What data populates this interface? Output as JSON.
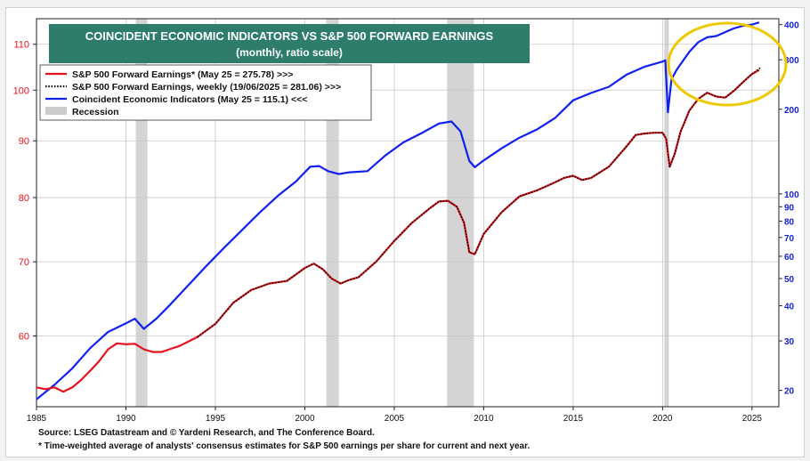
{
  "chart_data": {
    "type": "line",
    "title": "COINCIDENT ECONOMIC  INDICATORS VS S&P 500 FORWARD EARNINGS",
    "subtitle": "(monthly, ratio scale)",
    "x_ticks": [
      "1985",
      "1990",
      "1995",
      "2000",
      "2005",
      "2010",
      "2015",
      "2020",
      "2025"
    ],
    "xlim": [
      1985,
      2026.5
    ],
    "left_axis": {
      "scale": "log",
      "ylim": [
        51.8,
        116
      ],
      "ticks": [
        "60",
        "70",
        "80",
        "90",
        "100",
        "110"
      ],
      "color": "#e8101a"
    },
    "right_axis": {
      "scale": "log",
      "ylim": [
        17.5,
        420
      ],
      "ticks": [
        "20",
        "30",
        "40",
        "50",
        "60",
        "70",
        "80",
        "90",
        "100",
        "200",
        "300",
        "400"
      ],
      "color": "#1020d8"
    },
    "grid": true,
    "legend_position": "top-left",
    "recessions": [
      {
        "start": 1990.55,
        "end": 1991.2
      },
      {
        "start": 2001.2,
        "end": 2001.9
      },
      {
        "start": 2007.95,
        "end": 2009.45
      },
      {
        "start": 2020.1,
        "end": 2020.35
      }
    ],
    "series": [
      {
        "name": "Coincident Economic Indicators (May 25 = 115.1) <<<",
        "axis": "left",
        "color": "#1020f0",
        "style": "solid",
        "x": [
          1985.0,
          1986.0,
          1987.0,
          1988.0,
          1989.0,
          1990.0,
          1990.5,
          1991.0,
          1991.7,
          1992.5,
          1993.5,
          1994.5,
          1995.5,
          1996.5,
          1997.5,
          1998.5,
          1999.5,
          2000.3,
          2000.8,
          2001.3,
          2001.9,
          2002.5,
          2003.5,
          2004.5,
          2005.5,
          2006.5,
          2007.5,
          2008.2,
          2008.7,
          2009.2,
          2009.5,
          2010.0,
          2011.0,
          2012.0,
          2013.0,
          2014.0,
          2015.0,
          2016.0,
          2017.0,
          2018.0,
          2019.0,
          2020.0,
          2020.15,
          2020.3,
          2020.5,
          2020.8,
          2021.5,
          2022.0,
          2022.5,
          2023.0,
          2023.5,
          2024.0,
          2024.5,
          2025.0,
          2025.4
        ],
        "values": [
          52.6,
          54.2,
          56.1,
          58.5,
          60.5,
          61.6,
          62.2,
          60.9,
          62.2,
          64.1,
          66.7,
          69.4,
          72.1,
          74.8,
          77.6,
          80.3,
          82.7,
          85.3,
          85.4,
          84.5,
          84.0,
          84.3,
          84.5,
          87.3,
          89.7,
          91.4,
          93.3,
          93.7,
          91.8,
          86.3,
          85.2,
          86.4,
          88.6,
          90.6,
          92.2,
          94.4,
          97.9,
          99.4,
          100.7,
          103.3,
          105.0,
          106.1,
          106.4,
          95.5,
          102.3,
          104.4,
          108.3,
          110.5,
          111.6,
          111.9,
          112.8,
          113.7,
          114.3,
          114.6,
          115.1
        ]
      },
      {
        "name": "S&P 500 Forward Earnings* (May 25 = 275.78) >>>",
        "axis": "right",
        "color": "#e8101a",
        "style": "solid",
        "x": [
          1985.0,
          1985.5,
          1986.0,
          1986.5,
          1987.0,
          1987.5,
          1988.0,
          1988.5,
          1989.0,
          1989.5,
          1990.0,
          1990.5,
          1991.0,
          1991.5,
          1992.0,
          1992.5,
          1993.0,
          1994.0,
          1995.0,
          1996.0,
          1997.0,
          1998.0,
          1999.0,
          2000.0,
          2000.5,
          2001.0,
          2001.5,
          2002.0,
          2002.5,
          2003.0,
          2004.0,
          2005.0,
          2006.0,
          2007.0,
          2007.5,
          2008.0,
          2008.5,
          2008.9,
          2009.2,
          2009.5,
          2010.0,
          2011.0,
          2012.0,
          2013.0,
          2014.0,
          2014.5,
          2015.0,
          2015.5,
          2016.0,
          2017.0,
          2018.0,
          2018.5,
          2019.0,
          2019.5,
          2020.0,
          2020.2,
          2020.4,
          2020.7,
          2021.0,
          2021.5,
          2022.0,
          2022.5,
          2023.0,
          2023.5,
          2024.0,
          2024.5,
          2025.0,
          2025.4
        ],
        "values": [
          20.5,
          20.2,
          20.5,
          19.8,
          20.5,
          21.8,
          23.5,
          25.4,
          28.0,
          29.4,
          29.2,
          29.3,
          28.0,
          27.4,
          27.4,
          28.1,
          28.8,
          31.0,
          34.5,
          41.0,
          45.5,
          48.0,
          49.0,
          54.5,
          56.5,
          54.0,
          50.0,
          48.0,
          49.5,
          50.5,
          57.5,
          68.0,
          79.0,
          89.0,
          94.0,
          94.5,
          90.0,
          79.0,
          62.0,
          61.0,
          72.0,
          86.0,
          98.0,
          103.0,
          110.0,
          114.0,
          116.0,
          112.0,
          114.0,
          125.0,
          148.0,
          162.0,
          164.0,
          165.0,
          165.0,
          157.0,
          125.0,
          140.0,
          166.0,
          198.0,
          218.0,
          229.0,
          222.0,
          220.0,
          233.0,
          250.0,
          267.0,
          275.78
        ]
      },
      {
        "name": "S&P 500 Forward Earnings, weekly (19/06/2025 = 281.06) >>>",
        "axis": "right",
        "color": "#000000",
        "style": "dotted",
        "x": [
          1994.0,
          1995.0,
          1996.0,
          1997.0,
          1998.0,
          1999.0,
          2000.0,
          2000.5,
          2001.0,
          2001.5,
          2002.0,
          2002.5,
          2003.0,
          2004.0,
          2005.0,
          2006.0,
          2007.0,
          2007.5,
          2008.0,
          2008.5,
          2008.9,
          2009.2,
          2009.5,
          2010.0,
          2011.0,
          2012.0,
          2013.0,
          2014.0,
          2014.5,
          2015.0,
          2015.5,
          2016.0,
          2017.0,
          2018.0,
          2018.5,
          2019.0,
          2019.5,
          2020.0,
          2020.2,
          2020.4,
          2020.7,
          2021.0,
          2021.5,
          2022.0,
          2022.5,
          2023.0,
          2023.5,
          2024.0,
          2024.5,
          2025.0,
          2025.47
        ],
        "values": [
          31.0,
          34.5,
          41.0,
          45.5,
          48.0,
          49.0,
          54.5,
          56.5,
          54.0,
          50.0,
          48.0,
          49.5,
          50.5,
          57.5,
          68.0,
          79.0,
          89.0,
          94.0,
          94.5,
          90.0,
          79.0,
          62.0,
          61.0,
          72.0,
          86.0,
          98.0,
          103.0,
          110.0,
          114.0,
          116.0,
          112.0,
          114.0,
          125.0,
          148.0,
          162.0,
          164.0,
          165.0,
          165.0,
          157.0,
          125.0,
          140.0,
          166.0,
          198.0,
          218.0,
          229.0,
          222.0,
          220.0,
          233.0,
          250.0,
          267.0,
          281.06
        ]
      }
    ],
    "legend": [
      {
        "label": "S&P 500 Forward Earnings* (May 25 = 275.78) >>>",
        "color": "#e8101a",
        "style": "solid"
      },
      {
        "label": "S&P 500 Forward Earnings, weekly (19/06/2025 = 281.06) >>>",
        "color": "#000000",
        "style": "dotted"
      },
      {
        "label": "Coincident Economic Indicators (May 25 = 115.1) <<<",
        "color": "#1020f0",
        "style": "solid"
      },
      {
        "label": "Recession",
        "color": "#cccccc",
        "style": "band"
      }
    ],
    "annotation_ellipse_color": "#f0c800",
    "title_box_color": "#2e7d6c"
  },
  "footnotes": {
    "source": "Source: LSEG Datastream and © Yardeni Research, and The Conference Board.",
    "note": "* Time-weighted average of analysts' consensus estimates for S&P 500 earnings per share for current and next year."
  }
}
